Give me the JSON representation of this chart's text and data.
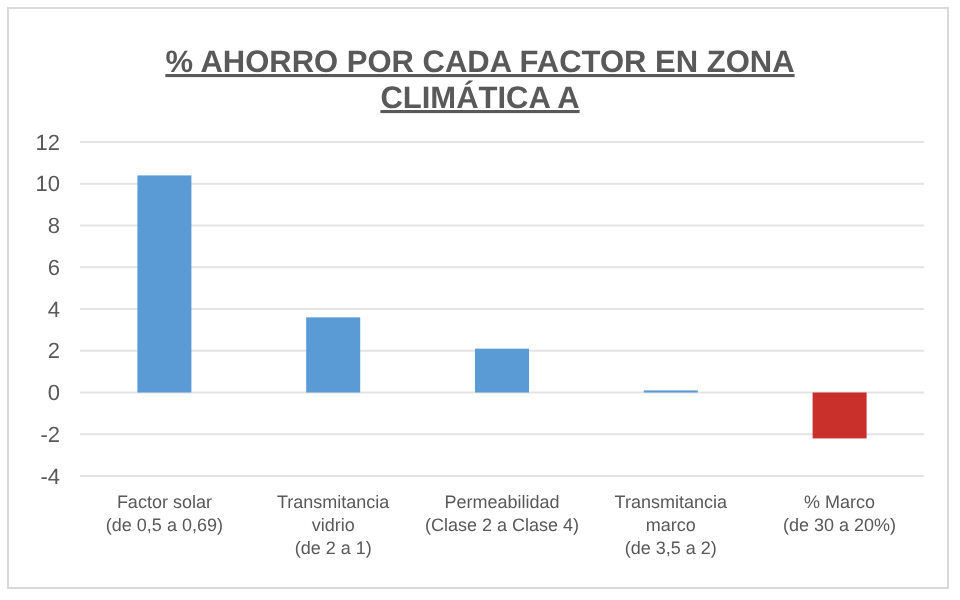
{
  "chart_data": {
    "type": "bar",
    "title": "% AHORRO POR CADA FACTOR EN ZONA CLIMÁTICA A",
    "categories": [
      "Factor solar\n(de 0,5 a 0,69)",
      "Transmitancia\nvidrio\n(de 2 a 1)",
      "Permeabilidad\n(Clase 2 a Clase 4)",
      "Transmitancia\nmarco\n(de 3,5 a 2)",
      "% Marco\n(de 30 a 20%)"
    ],
    "values": [
      10.4,
      3.6,
      2.1,
      0.1,
      -2.2
    ],
    "colors": [
      "#5b9bd5",
      "#5b9bd5",
      "#5b9bd5",
      "#5b9bd5",
      "#c9302c"
    ],
    "ylim": [
      -4,
      12
    ],
    "yticks": [
      -4,
      -2,
      0,
      2,
      4,
      6,
      8,
      10,
      12
    ],
    "grid": true
  }
}
